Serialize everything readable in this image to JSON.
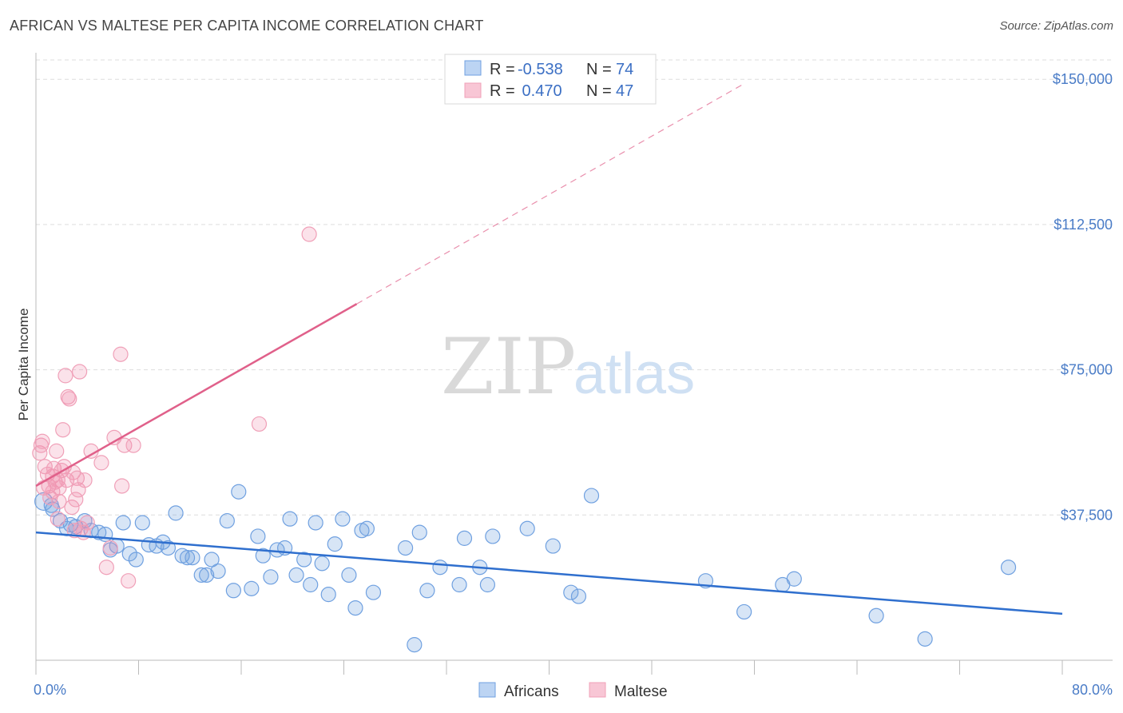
{
  "chart_data": {
    "type": "scatter",
    "title": "AFRICAN VS MALTESE PER CAPITA INCOME CORRELATION CHART",
    "source": "Source: ZipAtlas.com",
    "ylabel": "Per Capita Income",
    "xlim": [
      0,
      80
    ],
    "ylim": [
      0,
      155000
    ],
    "x_tick_labels": [
      "0.0%",
      "80.0%"
    ],
    "y_ticks": [
      37500,
      75000,
      112500,
      150000
    ],
    "y_tick_labels": [
      "$37,500",
      "$75,000",
      "$112,500",
      "$150,000"
    ],
    "watermark": {
      "zip": "ZIP",
      "atlas": "atlas"
    },
    "legend": [
      {
        "r_label": "R =",
        "r_value": "-0.538",
        "n_label": "N =",
        "n_value": "74"
      },
      {
        "r_label": "R =",
        "r_value": " 0.470",
        "n_label": "N =",
        "n_value": "47"
      }
    ],
    "series": [
      {
        "name": "Africans",
        "color": "#6fa0e0",
        "line_color": "#2f6fce",
        "trend": {
          "x0": 0,
          "y0": 33000,
          "x1": 80,
          "y1": 12000
        },
        "points": [
          [
            0.6,
            41000
          ],
          [
            1.2,
            40000
          ],
          [
            1.3,
            39000
          ],
          [
            1.9,
            36000
          ],
          [
            2.4,
            34000
          ],
          [
            2.7,
            35000
          ],
          [
            3.1,
            34500
          ],
          [
            3.8,
            36000
          ],
          [
            4.3,
            33500
          ],
          [
            4.9,
            33000
          ],
          [
            5.4,
            32500
          ],
          [
            5.8,
            28500
          ],
          [
            6.3,
            29500
          ],
          [
            6.8,
            35500
          ],
          [
            7.3,
            27500
          ],
          [
            7.8,
            26000
          ],
          [
            8.3,
            35500
          ],
          [
            8.8,
            29800
          ],
          [
            9.4,
            29500
          ],
          [
            9.9,
            30500
          ],
          [
            10.3,
            29000
          ],
          [
            10.9,
            38000
          ],
          [
            11.4,
            27000
          ],
          [
            11.8,
            26500
          ],
          [
            12.2,
            26500
          ],
          [
            12.9,
            22000
          ],
          [
            13.3,
            22000
          ],
          [
            13.7,
            26000
          ],
          [
            14.2,
            23000
          ],
          [
            14.9,
            36000
          ],
          [
            15.4,
            18000
          ],
          [
            15.8,
            43500
          ],
          [
            16.8,
            18500
          ],
          [
            17.3,
            32000
          ],
          [
            17.7,
            27000
          ],
          [
            18.3,
            21500
          ],
          [
            18.8,
            28500
          ],
          [
            19.4,
            29000
          ],
          [
            19.8,
            36500
          ],
          [
            20.3,
            22000
          ],
          [
            20.9,
            26000
          ],
          [
            21.4,
            19500
          ],
          [
            21.8,
            35500
          ],
          [
            22.3,
            25000
          ],
          [
            22.8,
            17000
          ],
          [
            23.3,
            30000
          ],
          [
            23.9,
            36500
          ],
          [
            24.4,
            22000
          ],
          [
            24.9,
            13500
          ],
          [
            25.4,
            33500
          ],
          [
            25.8,
            34000
          ],
          [
            26.3,
            17500
          ],
          [
            28.8,
            29000
          ],
          [
            29.5,
            4000
          ],
          [
            29.9,
            33000
          ],
          [
            30.5,
            18000
          ],
          [
            31.5,
            24000
          ],
          [
            33.0,
            19500
          ],
          [
            33.4,
            31500
          ],
          [
            34.6,
            24000
          ],
          [
            35.2,
            19500
          ],
          [
            35.6,
            32000
          ],
          [
            38.3,
            34000
          ],
          [
            40.3,
            29500
          ],
          [
            41.7,
            17500
          ],
          [
            42.3,
            16500
          ],
          [
            43.3,
            42500
          ],
          [
            52.2,
            20500
          ],
          [
            55.2,
            12500
          ],
          [
            58.2,
            19500
          ],
          [
            59.1,
            21000
          ],
          [
            65.5,
            11500
          ],
          [
            69.3,
            5500
          ],
          [
            75.8,
            24000
          ]
        ]
      },
      {
        "name": "Maltese",
        "color": "#f0a0b8",
        "line_color": "#e0608a",
        "trend": {
          "x0": 0,
          "y0": 45000,
          "x1": 25,
          "y1": 92000
        },
        "trend_dashed": {
          "x0": 25,
          "y0": 92000,
          "x1": 55,
          "y1": 148500
        },
        "points": [
          [
            0.3,
            53500
          ],
          [
            0.4,
            55500
          ],
          [
            0.5,
            56500
          ],
          [
            0.6,
            44500
          ],
          [
            0.7,
            50000
          ],
          [
            0.9,
            48000
          ],
          [
            1.0,
            45000
          ],
          [
            1.1,
            42000
          ],
          [
            1.3,
            43500
          ],
          [
            1.3,
            47500
          ],
          [
            1.4,
            49500
          ],
          [
            1.5,
            46000
          ],
          [
            1.6,
            54000
          ],
          [
            1.7,
            46500
          ],
          [
            1.7,
            36500
          ],
          [
            1.8,
            44500
          ],
          [
            1.8,
            41000
          ],
          [
            2.0,
            49000
          ],
          [
            2.1,
            59500
          ],
          [
            2.2,
            50000
          ],
          [
            2.3,
            73500
          ],
          [
            2.4,
            46500
          ],
          [
            2.5,
            68000
          ],
          [
            2.6,
            67500
          ],
          [
            2.8,
            39500
          ],
          [
            2.9,
            48500
          ],
          [
            3.0,
            33500
          ],
          [
            3.1,
            41500
          ],
          [
            3.2,
            47000
          ],
          [
            3.3,
            44000
          ],
          [
            3.4,
            74500
          ],
          [
            3.5,
            34000
          ],
          [
            3.7,
            33000
          ],
          [
            3.8,
            46500
          ],
          [
            4.0,
            35500
          ],
          [
            4.3,
            54000
          ],
          [
            5.1,
            51000
          ],
          [
            5.5,
            24000
          ],
          [
            5.8,
            29000
          ],
          [
            6.1,
            57500
          ],
          [
            6.6,
            79000
          ],
          [
            6.7,
            45000
          ],
          [
            6.9,
            55500
          ],
          [
            7.2,
            20500
          ],
          [
            7.6,
            55500
          ],
          [
            17.4,
            61000
          ],
          [
            21.3,
            110000
          ]
        ]
      }
    ]
  }
}
